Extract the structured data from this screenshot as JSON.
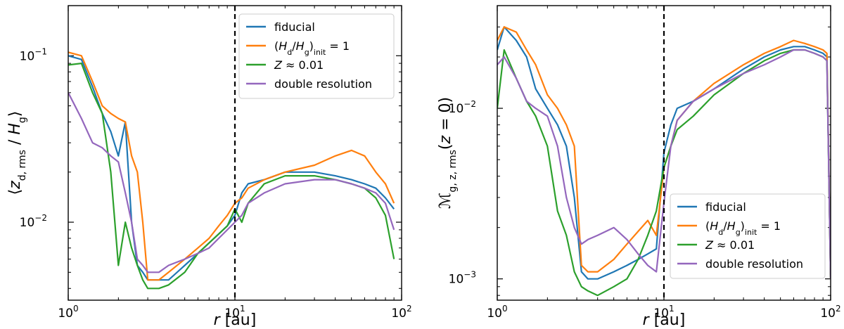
{
  "chart_data": [
    {
      "type": "line",
      "xscale": "log",
      "yscale": "log",
      "xlim": [
        1,
        100
      ],
      "ylim": [
        0.0034,
        0.2
      ],
      "xlabel_italic": "r",
      "xlabel_unit": " [au]",
      "ylabel": "⟨z_d, rms / H_g⟩",
      "xticks": [
        {
          "base": "10",
          "exp": "0"
        },
        {
          "base": "10",
          "exp": "1"
        },
        {
          "base": "10",
          "exp": "2"
        }
      ],
      "yticks": [
        {
          "value": 0.01,
          "base": "10",
          "exp": "−2"
        },
        {
          "value": 0.1,
          "base": "10",
          "exp": "−1"
        }
      ],
      "vline_x": 10,
      "legend_position": "top-right",
      "series": [
        {
          "name": "fiducial",
          "color": "#1f77b4",
          "x": [
            1.0,
            1.2,
            1.4,
            1.6,
            1.8,
            2.0,
            2.2,
            2.4,
            2.6,
            2.8,
            3.0,
            3.5,
            4,
            5,
            6,
            7,
            8,
            9,
            10,
            11,
            12,
            15,
            20,
            30,
            40,
            50,
            60,
            70,
            80,
            90
          ],
          "y": [
            0.1,
            0.095,
            0.065,
            0.045,
            0.035,
            0.025,
            0.04,
            0.01,
            0.0055,
            0.005,
            0.0045,
            0.0045,
            0.0045,
            0.0055,
            0.0065,
            0.0075,
            0.0085,
            0.0095,
            0.011,
            0.015,
            0.017,
            0.018,
            0.02,
            0.02,
            0.019,
            0.018,
            0.017,
            0.016,
            0.014,
            0.012
          ]
        },
        {
          "name": "(H_d/H_g)_init = 1",
          "color": "#ff7f0e",
          "x": [
            1.0,
            1.2,
            1.4,
            1.6,
            1.8,
            2.0,
            2.2,
            2.4,
            2.6,
            2.8,
            3.0,
            3.5,
            4,
            5,
            6,
            7,
            8,
            9,
            10,
            11,
            12,
            15,
            20,
            30,
            40,
            50,
            60,
            70,
            80,
            90
          ],
          "y": [
            0.105,
            0.1,
            0.07,
            0.05,
            0.045,
            0.042,
            0.04,
            0.025,
            0.02,
            0.01,
            0.0045,
            0.0045,
            0.005,
            0.006,
            0.007,
            0.008,
            0.0095,
            0.011,
            0.013,
            0.014,
            0.016,
            0.018,
            0.02,
            0.022,
            0.025,
            0.027,
            0.025,
            0.02,
            0.017,
            0.013
          ]
        },
        {
          "name": "Z ≈ 0.01",
          "color": "#2ca02c",
          "x": [
            1.0,
            1.2,
            1.4,
            1.6,
            1.8,
            2.0,
            2.2,
            2.4,
            2.6,
            2.8,
            3.0,
            3.5,
            4,
            5,
            6,
            7,
            8,
            9,
            10,
            11,
            12,
            15,
            20,
            30,
            40,
            50,
            60,
            70,
            80,
            90
          ],
          "y": [
            0.088,
            0.09,
            0.06,
            0.045,
            0.02,
            0.0055,
            0.01,
            0.007,
            0.0055,
            0.0045,
            0.004,
            0.004,
            0.0042,
            0.005,
            0.0065,
            0.0075,
            0.0085,
            0.0095,
            0.012,
            0.01,
            0.013,
            0.017,
            0.019,
            0.019,
            0.018,
            0.017,
            0.016,
            0.014,
            0.011,
            0.006
          ]
        },
        {
          "name": "double resolution",
          "color": "#9467bd",
          "x": [
            1.0,
            1.2,
            1.4,
            1.6,
            1.8,
            2.0,
            2.2,
            2.4,
            2.6,
            2.8,
            3.0,
            3.5,
            4,
            5,
            6,
            7,
            8,
            9,
            10,
            11,
            12,
            15,
            20,
            30,
            40,
            50,
            60,
            70,
            80,
            90
          ],
          "y": [
            0.06,
            0.042,
            0.03,
            0.028,
            0.025,
            0.023,
            0.015,
            0.01,
            0.006,
            0.0055,
            0.005,
            0.005,
            0.0055,
            0.006,
            0.0065,
            0.007,
            0.008,
            0.009,
            0.01,
            0.011,
            0.013,
            0.015,
            0.017,
            0.018,
            0.018,
            0.017,
            0.016,
            0.015,
            0.013,
            0.009
          ]
        }
      ]
    },
    {
      "type": "line",
      "xscale": "log",
      "yscale": "log",
      "xlim": [
        1,
        100
      ],
      "ylim": [
        0.00075,
        0.04
      ],
      "xlabel_italic": "r",
      "xlabel_unit": " [au]",
      "ylabel": "ℳ_g, z, rms(z = 0)",
      "xticks": [
        {
          "base": "10",
          "exp": "0"
        },
        {
          "base": "10",
          "exp": "1"
        },
        {
          "base": "10",
          "exp": "2"
        }
      ],
      "yticks": [
        {
          "value": 0.001,
          "base": "10",
          "exp": "−3"
        },
        {
          "value": 0.01,
          "base": "10",
          "exp": "−2"
        }
      ],
      "vline_x": 10,
      "legend_position": "bottom-right",
      "series": [
        {
          "name": "fiducial",
          "color": "#1f77b4",
          "x": [
            1.0,
            1.1,
            1.3,
            1.5,
            1.7,
            2.0,
            2.3,
            2.6,
            2.9,
            3.2,
            3.5,
            4,
            5,
            6,
            7,
            8,
            9,
            10,
            11,
            12,
            15,
            20,
            30,
            40,
            50,
            60,
            70,
            80,
            90,
            95,
            100
          ],
          "y": [
            0.022,
            0.03,
            0.025,
            0.02,
            0.013,
            0.01,
            0.008,
            0.006,
            0.003,
            0.0011,
            0.001,
            0.001,
            0.0011,
            0.0012,
            0.0013,
            0.0014,
            0.0015,
            0.0055,
            0.008,
            0.01,
            0.011,
            0.013,
            0.017,
            0.02,
            0.022,
            0.023,
            0.023,
            0.022,
            0.021,
            0.02,
            0.001
          ]
        },
        {
          "name": "(H_d/H_g)_init = 1",
          "color": "#ff7f0e",
          "x": [
            1.0,
            1.1,
            1.3,
            1.5,
            1.7,
            2.0,
            2.3,
            2.6,
            2.9,
            3.2,
            3.5,
            4,
            5,
            6,
            7,
            8,
            9,
            10,
            11,
            12,
            15,
            20,
            30,
            40,
            50,
            60,
            70,
            80,
            90,
            95,
            100
          ],
          "y": [
            0.025,
            0.03,
            0.028,
            0.022,
            0.018,
            0.012,
            0.01,
            0.008,
            0.006,
            0.0012,
            0.0011,
            0.0011,
            0.0013,
            0.0016,
            0.0019,
            0.0022,
            0.0018,
            0.0045,
            0.006,
            0.0085,
            0.011,
            0.014,
            0.018,
            0.021,
            0.023,
            0.025,
            0.024,
            0.023,
            0.022,
            0.021,
            0.001
          ]
        },
        {
          "name": "Z ≈ 0.01",
          "color": "#2ca02c",
          "x": [
            1.0,
            1.1,
            1.3,
            1.5,
            1.7,
            2.0,
            2.3,
            2.6,
            2.9,
            3.2,
            3.5,
            4,
            5,
            6,
            7,
            8,
            9,
            10,
            11,
            12,
            15,
            20,
            30,
            40,
            50,
            60,
            70,
            80,
            90,
            95,
            100
          ],
          "y": [
            0.01,
            0.022,
            0.015,
            0.011,
            0.009,
            0.006,
            0.0025,
            0.0018,
            0.0011,
            0.0009,
            0.00085,
            0.0008,
            0.0009,
            0.001,
            0.0013,
            0.0018,
            0.0025,
            0.0045,
            0.006,
            0.0075,
            0.009,
            0.012,
            0.016,
            0.019,
            0.021,
            0.022,
            0.022,
            0.021,
            0.02,
            0.019,
            0.001
          ]
        },
        {
          "name": "double resolution",
          "color": "#9467bd",
          "x": [
            1.0,
            1.1,
            1.3,
            1.5,
            1.7,
            2.0,
            2.3,
            2.6,
            2.9,
            3.2,
            3.5,
            4,
            5,
            6,
            7,
            8,
            9,
            10,
            11,
            12,
            15,
            20,
            30,
            40,
            50,
            60,
            70,
            80,
            90,
            95,
            100
          ],
          "y": [
            0.018,
            0.02,
            0.015,
            0.011,
            0.01,
            0.009,
            0.006,
            0.003,
            0.002,
            0.0016,
            0.0017,
            0.0018,
            0.002,
            0.0017,
            0.0014,
            0.0012,
            0.0011,
            0.0028,
            0.006,
            0.0085,
            0.011,
            0.013,
            0.016,
            0.018,
            0.02,
            0.022,
            0.022,
            0.021,
            0.02,
            0.019,
            0.001
          ]
        }
      ]
    }
  ]
}
